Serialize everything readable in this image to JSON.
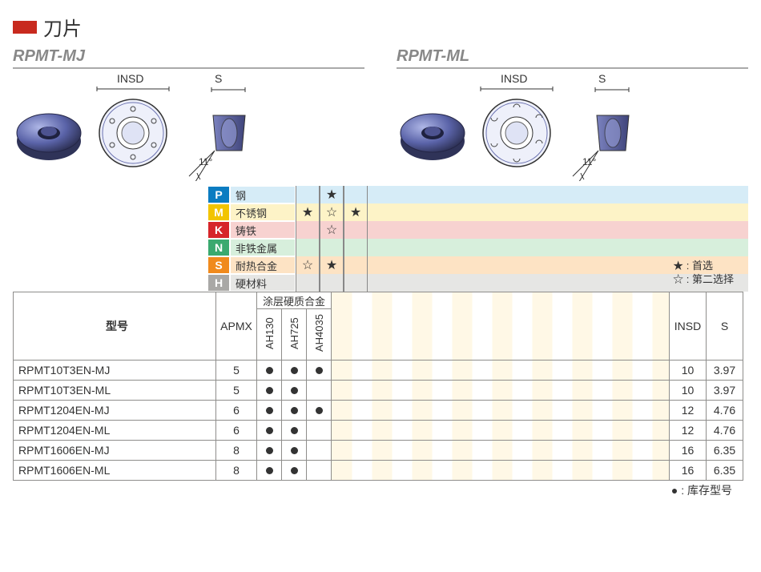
{
  "title": "刀片",
  "section_left": "RPMT-MJ",
  "section_right": "RPMT-ML",
  "dim_insd": "INSD",
  "dim_s": "S",
  "angle": "11°",
  "materials": [
    {
      "tag": "P",
      "name": "钢",
      "tag_bg": "#0b7cc1",
      "row_bg": "#d6ecf7",
      "marks": [
        "",
        "★",
        ""
      ]
    },
    {
      "tag": "M",
      "name": "不锈钢",
      "tag_bg": "#f2c400",
      "row_bg": "#fdf3c7",
      "marks": [
        "★",
        "☆",
        "★"
      ]
    },
    {
      "tag": "K",
      "name": "铸铁",
      "tag_bg": "#d6252a",
      "row_bg": "#f7d2d0",
      "marks": [
        "",
        "☆",
        ""
      ]
    },
    {
      "tag": "N",
      "name": "非铁金属",
      "tag_bg": "#3aa96f",
      "row_bg": "#d7efdc",
      "marks": [
        "",
        "",
        ""
      ]
    },
    {
      "tag": "S",
      "name": "耐热合金",
      "tag_bg": "#f08a1d",
      "row_bg": "#fde3c4",
      "marks": [
        "☆",
        "★",
        ""
      ]
    },
    {
      "tag": "H",
      "name": "硬材料",
      "tag_bg": "#a9a8a6",
      "row_bg": "#e6e6e4",
      "marks": [
        "",
        "",
        ""
      ]
    }
  ],
  "legend_first": "★ : 首选",
  "legend_second": "☆ : 第二选择",
  "coating_header": "涂层硬质合金",
  "header_model": "型号",
  "header_apmx": "APMX",
  "header_insd": "INSD",
  "header_s": "S",
  "grades": [
    "AH130",
    "AH725",
    "AH4035"
  ],
  "rows": [
    {
      "model": "RPMT10T3EN-MJ",
      "apmx": "5",
      "g": [
        "●",
        "●",
        "●"
      ],
      "insd": "10",
      "s": "3.97"
    },
    {
      "model": "RPMT10T3EN-ML",
      "apmx": "5",
      "g": [
        "●",
        "●",
        ""
      ],
      "insd": "10",
      "s": "3.97"
    },
    {
      "model": "RPMT1204EN-MJ",
      "apmx": "6",
      "g": [
        "●",
        "●",
        "●"
      ],
      "insd": "12",
      "s": "4.76"
    },
    {
      "model": "RPMT1204EN-ML",
      "apmx": "6",
      "g": [
        "●",
        "●",
        ""
      ],
      "insd": "12",
      "s": "4.76"
    },
    {
      "model": "RPMT1606EN-MJ",
      "apmx": "8",
      "g": [
        "●",
        "●",
        ""
      ],
      "insd": "16",
      "s": "6.35"
    },
    {
      "model": "RPMT1606EN-ML",
      "apmx": "8",
      "g": [
        "●",
        "●",
        ""
      ],
      "insd": "16",
      "s": "6.35"
    }
  ],
  "footer_note": "● : 库存型号",
  "colors": {
    "title_bar": "#c82a1e",
    "insert_body": "#5a63a8",
    "insert_hi": "#9aa2d6",
    "insert_dark": "#3b3f6f"
  }
}
